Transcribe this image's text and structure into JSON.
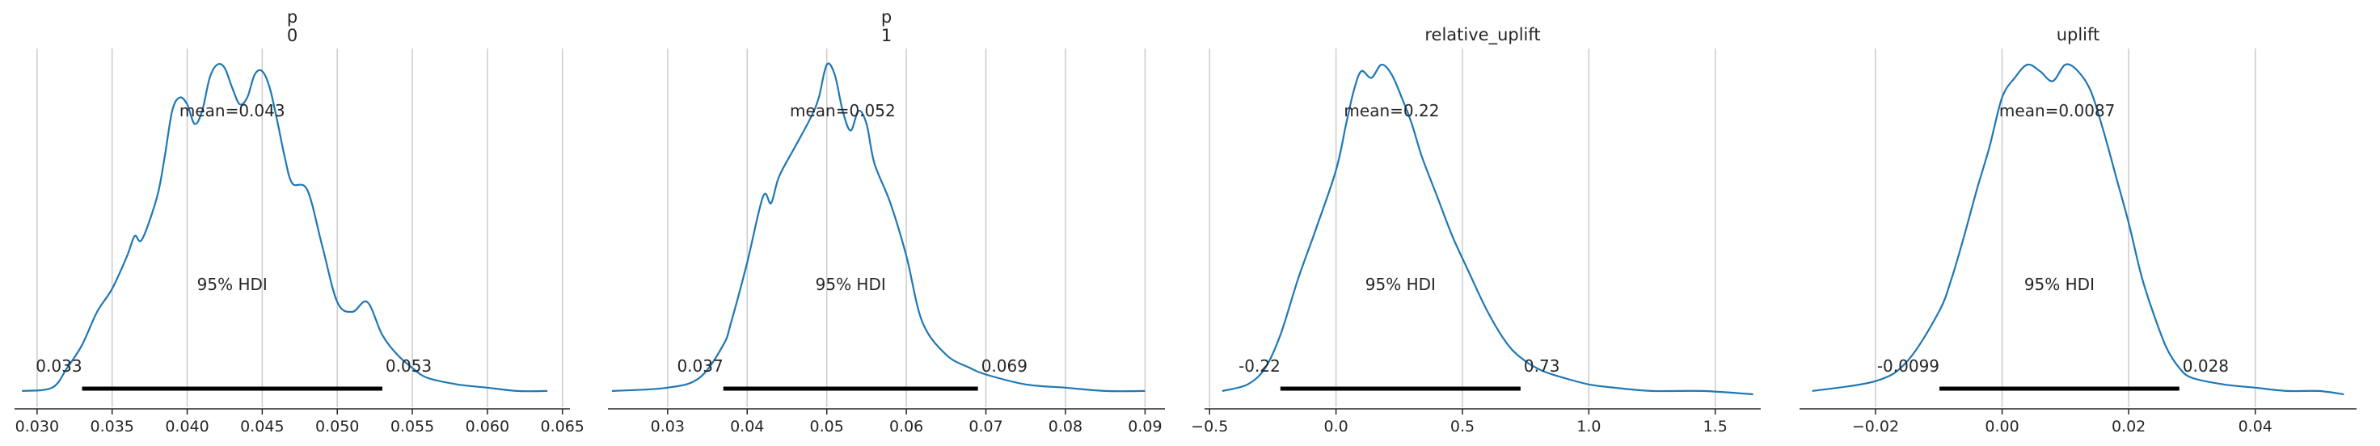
{
  "chart_data": [
    {
      "type": "area",
      "title": "p\n0",
      "xlabel": "",
      "ylabel": "",
      "xlim": [
        0.0285,
        0.0655
      ],
      "grid": "vertical",
      "xticks": [
        0.03,
        0.035,
        0.04,
        0.045,
        0.05,
        0.055,
        0.06,
        0.065
      ],
      "xtick_labels": [
        "0.030",
        "0.035",
        "0.040",
        "0.045",
        "0.050",
        "0.055",
        "0.060",
        "0.065"
      ],
      "mean_label": "mean=0.043",
      "mean": 0.043,
      "hdi_label": "95% HDI",
      "hdi": [
        0.033,
        0.053
      ],
      "hdi_labels": [
        "0.033",
        "0.053"
      ],
      "density": {
        "x": [
          0.029,
          0.031,
          0.032,
          0.033,
          0.034,
          0.035,
          0.036,
          0.0365,
          0.037,
          0.038,
          0.0385,
          0.039,
          0.0395,
          0.04,
          0.0405,
          0.041,
          0.0415,
          0.042,
          0.0425,
          0.043,
          0.0435,
          0.044,
          0.0445,
          0.045,
          0.0455,
          0.046,
          0.0465,
          0.047,
          0.048,
          0.049,
          0.05,
          0.051,
          0.052,
          0.053,
          0.054,
          0.055,
          0.056,
          0.058,
          0.06,
          0.062,
          0.064
        ],
        "y": [
          0.01,
          0.02,
          0.08,
          0.15,
          0.25,
          0.32,
          0.42,
          0.48,
          0.47,
          0.6,
          0.72,
          0.86,
          0.9,
          0.88,
          0.82,
          0.86,
          0.96,
          1.0,
          0.99,
          0.93,
          0.88,
          0.9,
          0.97,
          0.98,
          0.93,
          0.83,
          0.72,
          0.64,
          0.62,
          0.45,
          0.28,
          0.25,
          0.28,
          0.18,
          0.12,
          0.08,
          0.05,
          0.03,
          0.02,
          0.01,
          0.01
        ]
      }
    },
    {
      "type": "area",
      "title": "p\n1",
      "xlabel": "",
      "ylabel": "",
      "xlim": [
        0.0225,
        0.0925
      ],
      "grid": "vertical",
      "xticks": [
        0.03,
        0.04,
        0.05,
        0.06,
        0.07,
        0.08,
        0.09
      ],
      "xtick_labels": [
        "0.03",
        "0.04",
        "0.05",
        "0.06",
        "0.07",
        "0.08",
        "0.09"
      ],
      "mean_label": "mean=0.052",
      "mean": 0.052,
      "hdi_label": "95% HDI",
      "hdi": [
        0.037,
        0.069
      ],
      "hdi_labels": [
        "0.037",
        "0.069"
      ],
      "density": {
        "x": [
          0.023,
          0.03,
          0.034,
          0.037,
          0.038,
          0.04,
          0.042,
          0.043,
          0.044,
          0.046,
          0.048,
          0.049,
          0.05,
          0.051,
          0.052,
          0.053,
          0.054,
          0.055,
          0.056,
          0.058,
          0.06,
          0.062,
          0.065,
          0.068,
          0.07,
          0.075,
          0.08,
          0.085,
          0.09
        ],
        "y": [
          0.01,
          0.02,
          0.05,
          0.15,
          0.22,
          0.4,
          0.6,
          0.58,
          0.66,
          0.75,
          0.84,
          0.9,
          1.0,
          0.97,
          0.86,
          0.8,
          0.86,
          0.82,
          0.7,
          0.58,
          0.42,
          0.22,
          0.12,
          0.08,
          0.06,
          0.03,
          0.02,
          0.01,
          0.01
        ]
      }
    },
    {
      "type": "area",
      "title": "relative_uplift",
      "xlabel": "",
      "ylabel": "",
      "xlim": [
        -0.52,
        1.68
      ],
      "grid": "vertical",
      "xticks": [
        -0.5,
        0.0,
        0.5,
        1.0,
        1.5
      ],
      "xtick_labels": [
        "−0.5",
        "0.0",
        "0.5",
        "1.0",
        "1.5"
      ],
      "mean_label": "mean=0.22",
      "mean": 0.22,
      "hdi_label": "95% HDI",
      "hdi": [
        -0.22,
        0.73
      ],
      "hdi_labels": [
        "-0.22",
        "0.73"
      ],
      "density": {
        "x": [
          -0.45,
          -0.35,
          -0.28,
          -0.22,
          -0.15,
          -0.08,
          0.0,
          0.04,
          0.07,
          0.1,
          0.14,
          0.18,
          0.22,
          0.26,
          0.3,
          0.34,
          0.4,
          0.46,
          0.52,
          0.6,
          0.68,
          0.75,
          0.82,
          0.9,
          1.0,
          1.1,
          1.25,
          1.45,
          1.65
        ],
        "y": [
          0.01,
          0.03,
          0.08,
          0.18,
          0.35,
          0.5,
          0.68,
          0.82,
          0.92,
          0.98,
          0.96,
          1.0,
          0.97,
          0.9,
          0.82,
          0.72,
          0.6,
          0.48,
          0.38,
          0.25,
          0.15,
          0.1,
          0.07,
          0.05,
          0.03,
          0.02,
          0.01,
          0.01,
          0.0
        ]
      }
    },
    {
      "type": "area",
      "title": "uplift",
      "xlabel": "",
      "ylabel": "",
      "xlim": [
        -0.032,
        0.056
      ],
      "grid": "vertical",
      "xticks": [
        -0.02,
        0.0,
        0.02,
        0.04
      ],
      "xtick_labels": [
        "−0.02",
        "0.00",
        "0.02",
        "0.04"
      ],
      "mean_label": "mean=0.0087",
      "mean": 0.0087,
      "hdi_label": "95% HDI",
      "hdi": [
        -0.0099,
        0.028
      ],
      "hdi_labels": [
        "-0.0099",
        "0.028"
      ],
      "density": {
        "x": [
          -0.03,
          -0.02,
          -0.015,
          -0.01,
          -0.008,
          -0.006,
          -0.004,
          -0.002,
          0.0,
          0.002,
          0.004,
          0.006,
          0.008,
          0.01,
          0.012,
          0.014,
          0.016,
          0.018,
          0.02,
          0.022,
          0.024,
          0.026,
          0.028,
          0.03,
          0.035,
          0.04,
          0.045,
          0.05,
          0.054
        ],
        "y": [
          0.01,
          0.04,
          0.1,
          0.25,
          0.35,
          0.48,
          0.62,
          0.75,
          0.9,
          0.96,
          1.0,
          0.98,
          0.95,
          1.0,
          0.98,
          0.92,
          0.8,
          0.66,
          0.52,
          0.36,
          0.24,
          0.14,
          0.08,
          0.05,
          0.03,
          0.02,
          0.01,
          0.01,
          0.0
        ]
      }
    }
  ],
  "style": {
    "line_color": "#1f77b4",
    "grid_color": "#cccccc",
    "axis_color": "#262626",
    "hdi_color": "#000000"
  }
}
